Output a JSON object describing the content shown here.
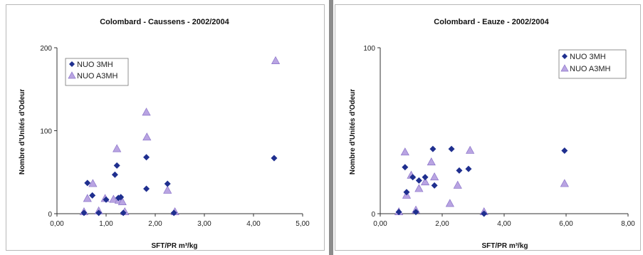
{
  "charts": [
    {
      "chart_data": {
        "type": "scatter",
        "title": "Colombard - Caussens - 2002/2004",
        "xlabel": "SFT/PR m³/kg",
        "ylabel": "Nombre d'Unités d'Odeur",
        "xlim": [
          0,
          5
        ],
        "ylim": [
          0,
          200
        ],
        "x_ticks": [
          "0,00",
          "1,00",
          "2,00",
          "3,00",
          "4,00",
          "5,00"
        ],
        "y_ticks": [
          "0",
          "100",
          "200"
        ],
        "legend_position": "top-left",
        "series": [
          {
            "name": "NUO 3MH",
            "marker": "diamond",
            "color": "#1f2f8f",
            "points": [
              [
                0.55,
                1
              ],
              [
                0.62,
                37
              ],
              [
                0.72,
                22
              ],
              [
                0.85,
                1
              ],
              [
                1.0,
                17
              ],
              [
                1.18,
                47
              ],
              [
                1.22,
                58
              ],
              [
                1.25,
                19
              ],
              [
                1.3,
                20
              ],
              [
                1.35,
                1
              ],
              [
                1.82,
                68
              ],
              [
                1.82,
                30
              ],
              [
                2.25,
                36
              ],
              [
                2.38,
                1
              ],
              [
                4.42,
                67
              ]
            ]
          },
          {
            "name": "NUO A3MH",
            "marker": "triangle",
            "color": "#b9a4e2",
            "points": [
              [
                0.55,
                2
              ],
              [
                0.62,
                18
              ],
              [
                0.73,
                36
              ],
              [
                0.85,
                3
              ],
              [
                0.98,
                18
              ],
              [
                1.15,
                17
              ],
              [
                1.22,
                78
              ],
              [
                1.26,
                16
              ],
              [
                1.33,
                14
              ],
              [
                1.38,
                2
              ],
              [
                1.82,
                122
              ],
              [
                1.83,
                92
              ],
              [
                2.25,
                28
              ],
              [
                2.4,
                2
              ],
              [
                4.45,
                184
              ]
            ]
          }
        ]
      }
    },
    {
      "chart_data": {
        "type": "scatter",
        "title": "Colombard - Eauze - 2002/2004",
        "xlabel": "SFT/PR m³/kg",
        "ylabel": "Nombre d'Unités d'Odeur",
        "xlim": [
          0,
          8
        ],
        "ylim": [
          0,
          100
        ],
        "x_ticks": [
          "0,00",
          "2,00",
          "4,00",
          "6,00",
          "8,00"
        ],
        "y_ticks": [
          "0",
          "100"
        ],
        "legend_position": "top-right",
        "series": [
          {
            "name": "NUO 3MH",
            "marker": "diamond",
            "color": "#1f2f8f",
            "points": [
              [
                0.6,
                1
              ],
              [
                0.8,
                28
              ],
              [
                0.85,
                13
              ],
              [
                1.05,
                22
              ],
              [
                1.15,
                1
              ],
              [
                1.25,
                20
              ],
              [
                1.45,
                22
              ],
              [
                1.7,
                39
              ],
              [
                1.75,
                17
              ],
              [
                2.3,
                39
              ],
              [
                2.55,
                26
              ],
              [
                2.85,
                27
              ],
              [
                3.35,
                0
              ],
              [
                5.95,
                38
              ]
            ]
          },
          {
            "name": "NUO A3MH",
            "marker": "triangle",
            "color": "#b9a4e2",
            "points": [
              [
                0.6,
                1
              ],
              [
                0.8,
                37
              ],
              [
                0.85,
                11
              ],
              [
                1.0,
                23
              ],
              [
                1.15,
                2
              ],
              [
                1.25,
                15
              ],
              [
                1.45,
                19
              ],
              [
                1.65,
                31
              ],
              [
                1.75,
                22
              ],
              [
                2.25,
                6
              ],
              [
                2.5,
                17
              ],
              [
                2.9,
                38
              ],
              [
                3.35,
                1
              ],
              [
                5.95,
                18
              ]
            ]
          }
        ]
      }
    }
  ]
}
